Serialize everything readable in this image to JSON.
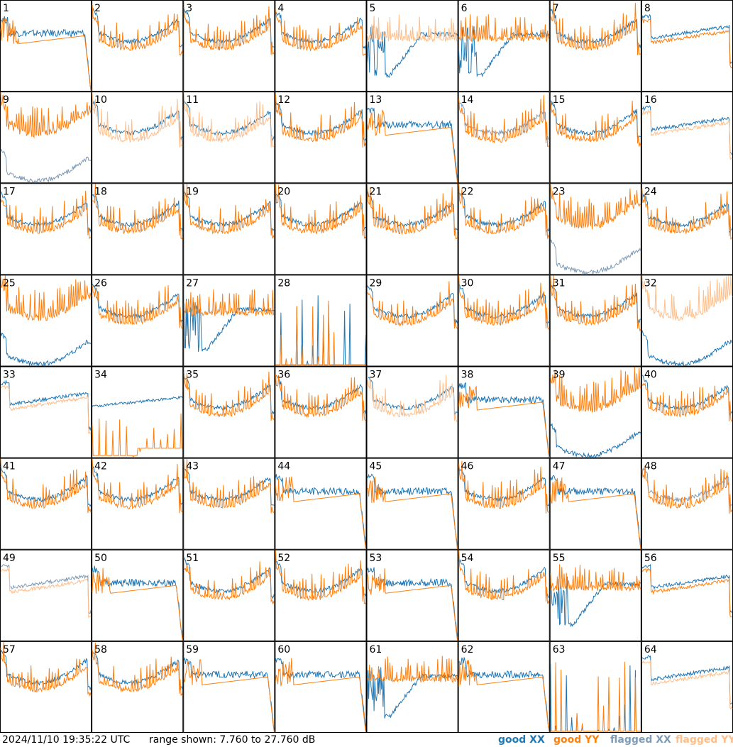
{
  "colors": {
    "good_xx": "#1f77b4",
    "good_yy": "#ff7f0e",
    "flagged_xx": "#7f9bb5",
    "flagged_yy": "#ffbe8a",
    "border": "#000000"
  },
  "footer": {
    "timestamp": "2024/11/10 19:35:22 UTC",
    "range_label": "range shown:",
    "range_min": "7.760",
    "range_word": "to",
    "range_max": "27.760",
    "range_unit": "dB"
  },
  "legend": [
    {
      "label": "good XX",
      "color": "#1f77b4"
    },
    {
      "label": "good YY",
      "color": "#ff7f0e"
    },
    {
      "label": "flagged XX",
      "color": "#7f9bb5"
    },
    {
      "label": "flagged YY",
      "color": "#ffbe8a"
    }
  ],
  "chart_data": {
    "type": "line",
    "layout": "8x8 small multiples, one panel per antenna",
    "ylim": [
      7.76,
      27.76
    ],
    "y_unit": "dB",
    "grid": false,
    "legend_placement": "bottom-right",
    "shape_key": {
      "N": "normal bandpass with dense spikes",
      "Y": "YY-dominant normal bandpass",
      "D": "smooth curve with steep high-frequency dropoff",
      "S": "sparse tall spikes on empty background",
      "W": "deep early trough then smooth rise",
      "H": "strong baseline hump, flat",
      "F": "flat low baseline with few spikes"
    },
    "panels": [
      {
        "id": 1,
        "xx": "good",
        "yy": "good",
        "shape": "D"
      },
      {
        "id": 2,
        "xx": "good",
        "yy": "good",
        "shape": "N"
      },
      {
        "id": 3,
        "xx": "good",
        "yy": "good",
        "shape": "N"
      },
      {
        "id": 4,
        "xx": "good",
        "yy": "good",
        "shape": "N"
      },
      {
        "id": 5,
        "xx": "good",
        "yy": "flagged",
        "shape": "W"
      },
      {
        "id": 6,
        "xx": "good",
        "yy": "good",
        "shape": "W"
      },
      {
        "id": 7,
        "xx": "good",
        "yy": "good",
        "shape": "N"
      },
      {
        "id": 8,
        "xx": "good",
        "yy": "good",
        "shape": "H"
      },
      {
        "id": 9,
        "xx": "flagged",
        "yy": "good",
        "shape": "Y"
      },
      {
        "id": 10,
        "xx": "good",
        "yy": "flagged",
        "shape": "N"
      },
      {
        "id": 11,
        "xx": "good",
        "yy": "flagged",
        "shape": "N"
      },
      {
        "id": 12,
        "xx": "good",
        "yy": "good",
        "shape": "N"
      },
      {
        "id": 13,
        "xx": "good",
        "yy": "good",
        "shape": "D"
      },
      {
        "id": 14,
        "xx": "flagged",
        "yy": "good",
        "shape": "N"
      },
      {
        "id": 15,
        "xx": "good",
        "yy": "good",
        "shape": "N"
      },
      {
        "id": 16,
        "xx": "good",
        "yy": "flagged",
        "shape": "H"
      },
      {
        "id": 17,
        "xx": "good",
        "yy": "good",
        "shape": "N"
      },
      {
        "id": 18,
        "xx": "good",
        "yy": "good",
        "shape": "N"
      },
      {
        "id": 19,
        "xx": "good",
        "yy": "good",
        "shape": "N"
      },
      {
        "id": 20,
        "xx": "good",
        "yy": "good",
        "shape": "N"
      },
      {
        "id": 21,
        "xx": "good",
        "yy": "good",
        "shape": "N"
      },
      {
        "id": 22,
        "xx": "good",
        "yy": "good",
        "shape": "N"
      },
      {
        "id": 23,
        "xx": "flagged",
        "yy": "good",
        "shape": "Y"
      },
      {
        "id": 24,
        "xx": "good",
        "yy": "good",
        "shape": "N"
      },
      {
        "id": 25,
        "xx": "good",
        "yy": "good",
        "shape": "Y"
      },
      {
        "id": 26,
        "xx": "good",
        "yy": "good",
        "shape": "N"
      },
      {
        "id": 27,
        "xx": "good",
        "yy": "good",
        "shape": "W"
      },
      {
        "id": 28,
        "xx": "good",
        "yy": "good",
        "shape": "S"
      },
      {
        "id": 29,
        "xx": "good",
        "yy": "good",
        "shape": "N"
      },
      {
        "id": 30,
        "xx": "good",
        "yy": "good",
        "shape": "N"
      },
      {
        "id": 31,
        "xx": "good",
        "yy": "good",
        "shape": "N"
      },
      {
        "id": 32,
        "xx": "good",
        "yy": "flagged",
        "shape": "Y"
      },
      {
        "id": 33,
        "xx": "good",
        "yy": "flagged",
        "shape": "H"
      },
      {
        "id": 34,
        "xx": "good",
        "yy": "good",
        "shape": "F"
      },
      {
        "id": 35,
        "xx": "good",
        "yy": "good",
        "shape": "N"
      },
      {
        "id": 36,
        "xx": "good",
        "yy": "good",
        "shape": "N"
      },
      {
        "id": 37,
        "xx": "good",
        "yy": "flagged",
        "shape": "N"
      },
      {
        "id": 38,
        "xx": "good",
        "yy": "good",
        "shape": "D"
      },
      {
        "id": 39,
        "xx": "good",
        "yy": "good",
        "shape": "Y"
      },
      {
        "id": 40,
        "xx": "good",
        "yy": "good",
        "shape": "N"
      },
      {
        "id": 41,
        "xx": "good",
        "yy": "good",
        "shape": "N"
      },
      {
        "id": 42,
        "xx": "good",
        "yy": "good",
        "shape": "N"
      },
      {
        "id": 43,
        "xx": "good",
        "yy": "good",
        "shape": "N"
      },
      {
        "id": 44,
        "xx": "good",
        "yy": "good",
        "shape": "D"
      },
      {
        "id": 45,
        "xx": "good",
        "yy": "good",
        "shape": "D"
      },
      {
        "id": 46,
        "xx": "good",
        "yy": "good",
        "shape": "N"
      },
      {
        "id": 47,
        "xx": "good",
        "yy": "good",
        "shape": "D"
      },
      {
        "id": 48,
        "xx": "flagged",
        "yy": "good",
        "shape": "N"
      },
      {
        "id": 49,
        "xx": "flagged",
        "yy": "flagged",
        "shape": "H"
      },
      {
        "id": 50,
        "xx": "good",
        "yy": "good",
        "shape": "D"
      },
      {
        "id": 51,
        "xx": "good",
        "yy": "good",
        "shape": "N"
      },
      {
        "id": 52,
        "xx": "good",
        "yy": "good",
        "shape": "N"
      },
      {
        "id": 53,
        "xx": "good",
        "yy": "good",
        "shape": "D"
      },
      {
        "id": 54,
        "xx": "good",
        "yy": "good",
        "shape": "N"
      },
      {
        "id": 55,
        "xx": "good",
        "yy": "good",
        "shape": "W"
      },
      {
        "id": 56,
        "xx": "good",
        "yy": "good",
        "shape": "H"
      },
      {
        "id": 57,
        "xx": "good",
        "yy": "good",
        "shape": "N"
      },
      {
        "id": 58,
        "xx": "good",
        "yy": "good",
        "shape": "N"
      },
      {
        "id": 59,
        "xx": "good",
        "yy": "good",
        "shape": "D"
      },
      {
        "id": 60,
        "xx": "good",
        "yy": "good",
        "shape": "D"
      },
      {
        "id": 61,
        "xx": "good",
        "yy": "good",
        "shape": "W"
      },
      {
        "id": 62,
        "xx": "good",
        "yy": "good",
        "shape": "D"
      },
      {
        "id": 63,
        "xx": "good",
        "yy": "good",
        "shape": "S"
      },
      {
        "id": 64,
        "xx": "good",
        "yy": "flagged",
        "shape": "H"
      }
    ]
  }
}
